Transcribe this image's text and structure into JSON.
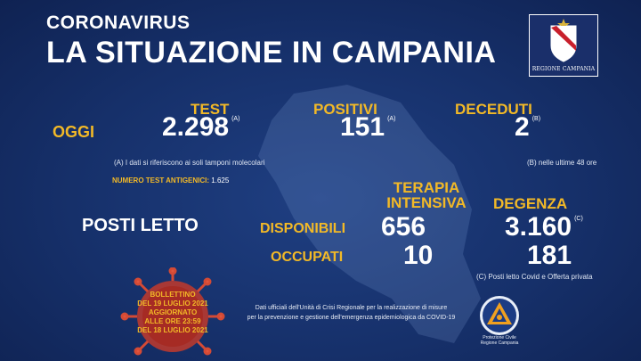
{
  "header": {
    "kicker": "CORONAVIRUS",
    "title": "LA SITUAZIONE IN CAMPANIA",
    "logo_label": "REGIONE CAMPANIA"
  },
  "today": {
    "row_label": "OGGI",
    "test": {
      "label": "TEST",
      "value": "2.298",
      "note": "(A)"
    },
    "positivi": {
      "label": "POSITIVI",
      "value": "151",
      "note": "(A)"
    },
    "deceduti": {
      "label": "DECEDUTI",
      "value": "2",
      "note": "(B)"
    }
  },
  "notes": {
    "a": "(A) I dati si riferiscono ai soli tamponi molecolari",
    "b": "(B) nelle ultime 48 ore",
    "antigen_label": "NUMERO TEST ANTIGENICI:",
    "antigen_value": "1.625",
    "c": "(C) Posti letto Covid e Offerta privata"
  },
  "beds": {
    "title": "POSTI LETTO",
    "col1_line1": "TERAPIA",
    "col1_line2": "INTENSIVA",
    "col2": "DEGENZA",
    "col2_note": "(C)",
    "rows": [
      {
        "label": "DISPONIBILI",
        "ti": "656",
        "degenza": "3.160"
      },
      {
        "label": "OCCUPATI",
        "ti": "10",
        "degenza": "181"
      }
    ]
  },
  "bulletin": {
    "lines": [
      "BOLLETTINO",
      "DEL 19 LUGLIO 2021",
      "AGGIORNATO",
      "ALLE ORE 23:59",
      "DEL 18 LUGLIO 2021"
    ]
  },
  "footer": {
    "line1": "Dati ufficiali dell'Unità di Crisi Regionale per la realizzazione di misure",
    "line2": "per la prevenzione e gestione dell'emergenza epidemiologica da COVID-19"
  },
  "protezione_civile": {
    "line1": "Protezione Civile",
    "line2": "Regione Campania"
  },
  "colors": {
    "background": "#16306a",
    "accent": "#f2b927",
    "text": "#ffffff"
  }
}
